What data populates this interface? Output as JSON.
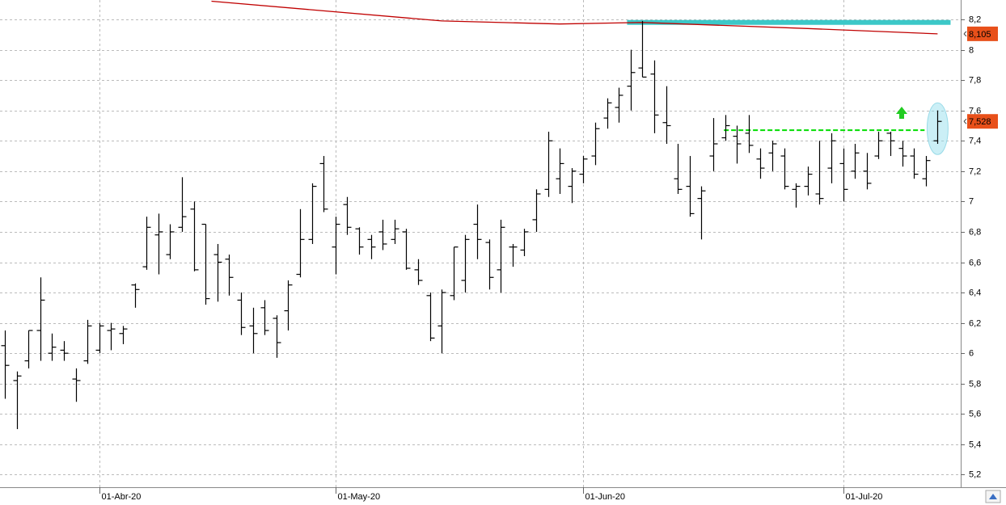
{
  "chart_data": {
    "type": "ohlc",
    "color": "#000000",
    "categories": [
      null,
      null,
      null,
      null,
      null,
      null,
      null,
      null,
      "01-Abr-20",
      null,
      null,
      null,
      null,
      null,
      null,
      null,
      null,
      null,
      null,
      null,
      null,
      null,
      null,
      null,
      null,
      null,
      null,
      null,
      "01-May-20",
      null,
      null,
      null,
      null,
      null,
      null,
      null,
      null,
      null,
      null,
      null,
      null,
      null,
      null,
      null,
      null,
      null,
      null,
      null,
      null,
      "01-Jun-20",
      null,
      null,
      null,
      null,
      null,
      null,
      null,
      null,
      null,
      null,
      null,
      null,
      null,
      null,
      null,
      null,
      null,
      null,
      null,
      null,
      null,
      "01-Jul-20",
      null,
      null,
      null,
      null,
      null,
      null,
      null,
      null
    ],
    "open": [
      6.05,
      5.82,
      5.95,
      6.15,
      6.0,
      6.02,
      5.83,
      5.95,
      6.02,
      6.15,
      6.13,
      6.45,
      6.57,
      6.78,
      6.65,
      6.83,
      6.95,
      6.85,
      6.65,
      6.62,
      6.35,
      6.18,
      6.3,
      6.23,
      6.28,
      6.52,
      6.75,
      7.25,
      6.7,
      6.98,
      6.82,
      6.75,
      6.8,
      6.75,
      6.8,
      6.55,
      6.38,
      6.18,
      6.38,
      6.48,
      6.85,
      6.73,
      6.55,
      6.7,
      6.68,
      6.88,
      7.08,
      7.15,
      7.1,
      7.18,
      7.3,
      7.55,
      7.62,
      7.76,
      7.88,
      7.84,
      7.52,
      7.15,
      7.1,
      7.02,
      7.3,
      7.42,
      7.43,
      7.45,
      7.28,
      7.32,
      7.3,
      7.08,
      7.1,
      7.05,
      7.22,
      7.25,
      7.2,
      7.2,
      7.3,
      7.45,
      7.35,
      7.3,
      7.15,
      7.4
    ],
    "high": [
      6.15,
      5.88,
      6.15,
      6.5,
      6.13,
      6.08,
      5.9,
      6.22,
      6.2,
      6.2,
      6.18,
      6.46,
      6.9,
      6.92,
      6.85,
      7.16,
      7.0,
      6.85,
      6.72,
      6.65,
      6.4,
      6.3,
      6.35,
      6.25,
      6.48,
      6.95,
      7.12,
      7.3,
      6.9,
      7.03,
      6.83,
      6.78,
      6.88,
      6.88,
      6.82,
      6.62,
      6.4,
      6.42,
      6.7,
      6.78,
      6.98,
      6.75,
      6.88,
      6.72,
      6.82,
      7.08,
      7.46,
      7.35,
      7.22,
      7.3,
      7.52,
      7.68,
      7.75,
      8.0,
      8.19,
      7.93,
      7.76,
      7.38,
      7.3,
      7.1,
      7.55,
      7.57,
      7.5,
      7.57,
      7.35,
      7.4,
      7.35,
      7.12,
      7.23,
      7.4,
      7.45,
      7.35,
      7.38,
      7.32,
      7.46,
      7.46,
      7.4,
      7.35,
      7.3,
      7.6
    ],
    "low": [
      5.7,
      5.5,
      5.9,
      5.95,
      5.95,
      5.95,
      5.68,
      5.93,
      6.0,
      6.02,
      6.06,
      6.3,
      6.55,
      6.52,
      6.62,
      6.8,
      6.54,
      6.32,
      6.34,
      6.38,
      6.12,
      6.0,
      6.12,
      5.97,
      6.15,
      6.5,
      6.72,
      6.93,
      6.52,
      6.78,
      6.65,
      6.62,
      6.68,
      6.72,
      6.55,
      6.45,
      6.08,
      6.0,
      6.35,
      6.4,
      6.62,
      6.42,
      6.4,
      6.57,
      6.64,
      6.8,
      7.03,
      7.05,
      6.99,
      7.12,
      7.24,
      7.48,
      7.52,
      7.6,
      7.82,
      7.45,
      7.38,
      7.05,
      6.9,
      6.75,
      7.2,
      7.4,
      7.25,
      7.32,
      7.15,
      7.2,
      7.08,
      6.96,
      7.04,
      6.98,
      7.12,
      7.0,
      7.15,
      7.08,
      7.28,
      7.3,
      7.23,
      7.15,
      7.1,
      7.38
    ],
    "close": [
      5.92,
      5.85,
      6.15,
      6.35,
      6.04,
      6.0,
      5.82,
      6.18,
      6.18,
      6.16,
      6.16,
      6.42,
      6.83,
      6.8,
      6.8,
      6.9,
      6.55,
      6.36,
      6.6,
      6.5,
      6.17,
      6.13,
      6.15,
      6.07,
      6.45,
      6.75,
      7.1,
      6.95,
      6.85,
      6.83,
      6.7,
      6.7,
      6.72,
      6.82,
      6.56,
      6.48,
      6.1,
      6.4,
      6.7,
      6.75,
      6.75,
      6.5,
      6.83,
      6.7,
      6.8,
      7.05,
      7.4,
      7.25,
      7.2,
      7.28,
      7.48,
      7.65,
      7.7,
      7.85,
      7.82,
      7.57,
      7.5,
      7.08,
      6.92,
      7.07,
      7.38,
      7.5,
      7.38,
      7.37,
      7.22,
      7.38,
      7.1,
      7.1,
      7.18,
      7.02,
      7.4,
      7.08,
      7.32,
      7.12,
      7.4,
      7.4,
      7.3,
      7.18,
      7.27,
      7.528
    ],
    "ylim": [
      5.117,
      8.328
    ],
    "yticks": [
      {
        "value": 5.2,
        "label": "5,2"
      },
      {
        "value": 5.4,
        "label": "5,4"
      },
      {
        "value": 5.6,
        "label": "5,6"
      },
      {
        "value": 5.8,
        "label": "5,8"
      },
      6,
      {
        "value": 6.2,
        "label": "6,2"
      },
      {
        "value": 6.4,
        "label": "6,4"
      },
      {
        "value": 6.6,
        "label": "6,6"
      },
      {
        "value": 6.8,
        "label": "6,8"
      },
      7,
      {
        "value": 7.2,
        "label": "7,2"
      },
      {
        "value": 7.4,
        "label": "7,4"
      },
      {
        "value": 7.6,
        "label": "7,6"
      },
      {
        "value": 7.8,
        "label": "7,8"
      },
      8,
      {
        "value": 8.2,
        "label": "8,2"
      }
    ],
    "grid": true,
    "moving_average": {
      "color": "#c00000",
      "x": [
        17.5,
        37,
        47,
        54,
        68,
        79
      ],
      "values": [
        8.32,
        8.19,
        8.17,
        8.18,
        8.14,
        8.105
      ]
    },
    "levels": [
      {
        "value": 8.18,
        "from": 52.7,
        "to": 80.1,
        "color": "#3cc8c8",
        "dashed": false
      },
      {
        "value": 7.47,
        "from": 60.9,
        "to": 77.9,
        "color": "#00dd00",
        "dashed": true
      }
    ],
    "price_labels": [
      {
        "value": 8.105,
        "label": "8,105"
      },
      {
        "value": 7.528,
        "label": "7,528"
      }
    ],
    "price_label_color": "#e8501a"
  }
}
